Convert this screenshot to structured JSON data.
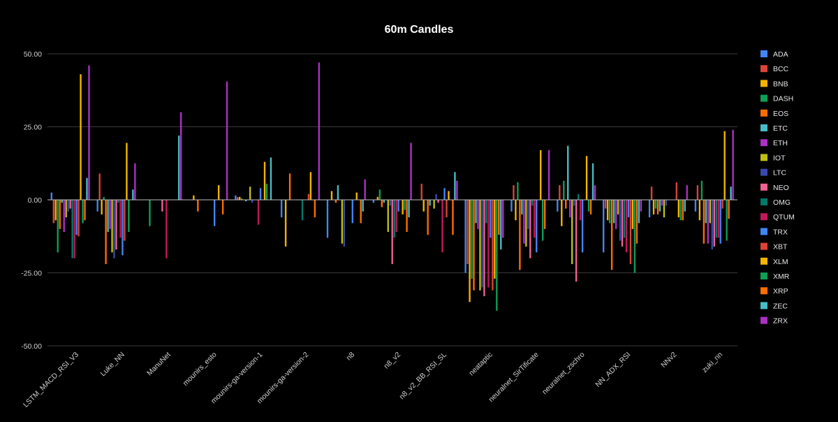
{
  "chart_data": {
    "type": "bar",
    "title": "60m Candles",
    "xlabel": "",
    "ylabel": "",
    "ylim": [
      -50,
      50
    ],
    "yticks": [
      "50.00",
      "25.00",
      "0.00",
      "-25.00",
      "-50.00"
    ],
    "grid": true,
    "legend_position": "right",
    "categories": [
      "LSTM_MACD_RSI_V3",
      "Luke_NN",
      "ManuNet",
      "mounirs_esto",
      "mounirs-ga-version-1",
      "mounirs-ga-version-2",
      "n8",
      "n8_v2",
      "n8_v2_BB_RSI_SL",
      "neataptic",
      "neuralnet_SirTificate",
      "neuralnet_zschro",
      "NN_ADX_RSI",
      "NNv2",
      "zuki_nn"
    ],
    "series": [
      {
        "name": "ADA",
        "color": "#4285f4",
        "values": [
          2.5,
          -4,
          0,
          0,
          1.5,
          -6,
          -13,
          -1,
          0,
          -25,
          -4,
          -4,
          -18,
          -6,
          -4
        ]
      },
      {
        "name": "BCC",
        "color": "#db4437",
        "values": [
          -8,
          9,
          0,
          0,
          1,
          0,
          0,
          0,
          5.5,
          -22,
          5,
          5,
          -3,
          4.5,
          5
        ]
      },
      {
        "name": "BNB",
        "color": "#f4b400",
        "values": [
          -7,
          -5,
          0,
          1.5,
          1,
          -16,
          3,
          1,
          -4,
          -35,
          -7,
          -9,
          -7,
          -5,
          -7
        ]
      },
      {
        "name": "DASH",
        "color": "#0f9d58",
        "values": [
          -18,
          1,
          -9,
          0,
          0.5,
          0,
          0,
          3.5,
          0,
          -27,
          6,
          6.5,
          -8,
          -3,
          6.5
        ]
      },
      {
        "name": "EOS",
        "color": "#ff6d00",
        "values": [
          -10,
          -22,
          0,
          -4,
          0,
          9,
          -1,
          -2.5,
          -12,
          -31,
          -24,
          -3,
          -24,
          -5,
          -15
        ]
      },
      {
        "name": "ETC",
        "color": "#46bdc6",
        "values": [
          -1,
          -11,
          0,
          0,
          -0.5,
          0,
          5,
          -1,
          -2,
          -8,
          -5,
          18.5,
          -8,
          -4,
          -8
        ]
      },
      {
        "name": "ETH",
        "color": "#ab30c4",
        "values": [
          -11,
          -10,
          0,
          0,
          0,
          0,
          0,
          0,
          0,
          -10,
          -15,
          -6,
          -10,
          -2,
          -15
        ]
      },
      {
        "name": "IOT",
        "color": "#bfbf14",
        "values": [
          -6,
          -18,
          0,
          0,
          4.5,
          0,
          -15,
          -11,
          -3,
          -31,
          -16,
          -22,
          -5,
          -6,
          -8
        ]
      },
      {
        "name": "LTC",
        "color": "#3949ab",
        "values": [
          -4,
          -20,
          0,
          0,
          -1,
          0,
          -16,
          -2,
          2,
          -30,
          -10,
          -2,
          -14,
          -2,
          -17
        ]
      },
      {
        "name": "NEO",
        "color": "#f06292",
        "values": [
          -3,
          -17,
          -4,
          0,
          0,
          0,
          0,
          -22,
          -1,
          -33,
          -20,
          -28,
          -16,
          0,
          -16
        ]
      },
      {
        "name": "OMG",
        "color": "#00796b",
        "values": [
          -20,
          -1,
          0,
          0,
          0,
          -7,
          0,
          -13,
          0,
          -8,
          -2,
          2,
          -13,
          0,
          -13
        ]
      },
      {
        "name": "QTUM",
        "color": "#c2185b",
        "values": [
          -20,
          -13,
          -20,
          0,
          -8.5,
          0,
          0,
          -11,
          -18,
          -30,
          -13,
          -7,
          -18,
          0,
          -13
        ]
      },
      {
        "name": "TRX",
        "color": "#4285f4",
        "values": [
          -12,
          -19,
          0,
          -9,
          4,
          0,
          -8,
          -4,
          4,
          -13,
          -18,
          -18,
          -6,
          0,
          -15
        ]
      },
      {
        "name": "XBT",
        "color": "#db4437",
        "values": [
          -12.5,
          -14,
          0,
          0,
          0,
          2,
          0,
          0,
          -6,
          -31,
          0,
          0,
          -22,
          6,
          -3
        ]
      },
      {
        "name": "XLM",
        "color": "#f4b400",
        "values": [
          43,
          19.5,
          0,
          5,
          13,
          9.5,
          2.5,
          -5,
          3,
          -27,
          17,
          15,
          -10,
          -6,
          23.5
        ]
      },
      {
        "name": "XMR",
        "color": "#0f9d58",
        "values": [
          -8,
          -11,
          0,
          0,
          5.5,
          0,
          0,
          -3.5,
          0,
          -38,
          -14,
          -4,
          -25,
          -7,
          -14
        ]
      },
      {
        "name": "XRP",
        "color": "#ff6d00",
        "values": [
          -7,
          0,
          0,
          -5,
          0,
          -6,
          -8,
          -11,
          -12,
          -12,
          -10,
          -5,
          -15,
          -7,
          -6.5
        ]
      },
      {
        "name": "ZEC",
        "color": "#46bdc6",
        "values": [
          7.5,
          3.5,
          22,
          0,
          14.5,
          0,
          -4,
          -6,
          9.5,
          -17,
          0,
          12.5,
          -8,
          -4,
          4.5
        ]
      },
      {
        "name": "ZRX",
        "color": "#ab30c4",
        "values": [
          46,
          12.5,
          30,
          40.5,
          0,
          47,
          7,
          19.5,
          6.5,
          -13,
          17,
          5,
          -4,
          5,
          24
        ]
      }
    ]
  }
}
